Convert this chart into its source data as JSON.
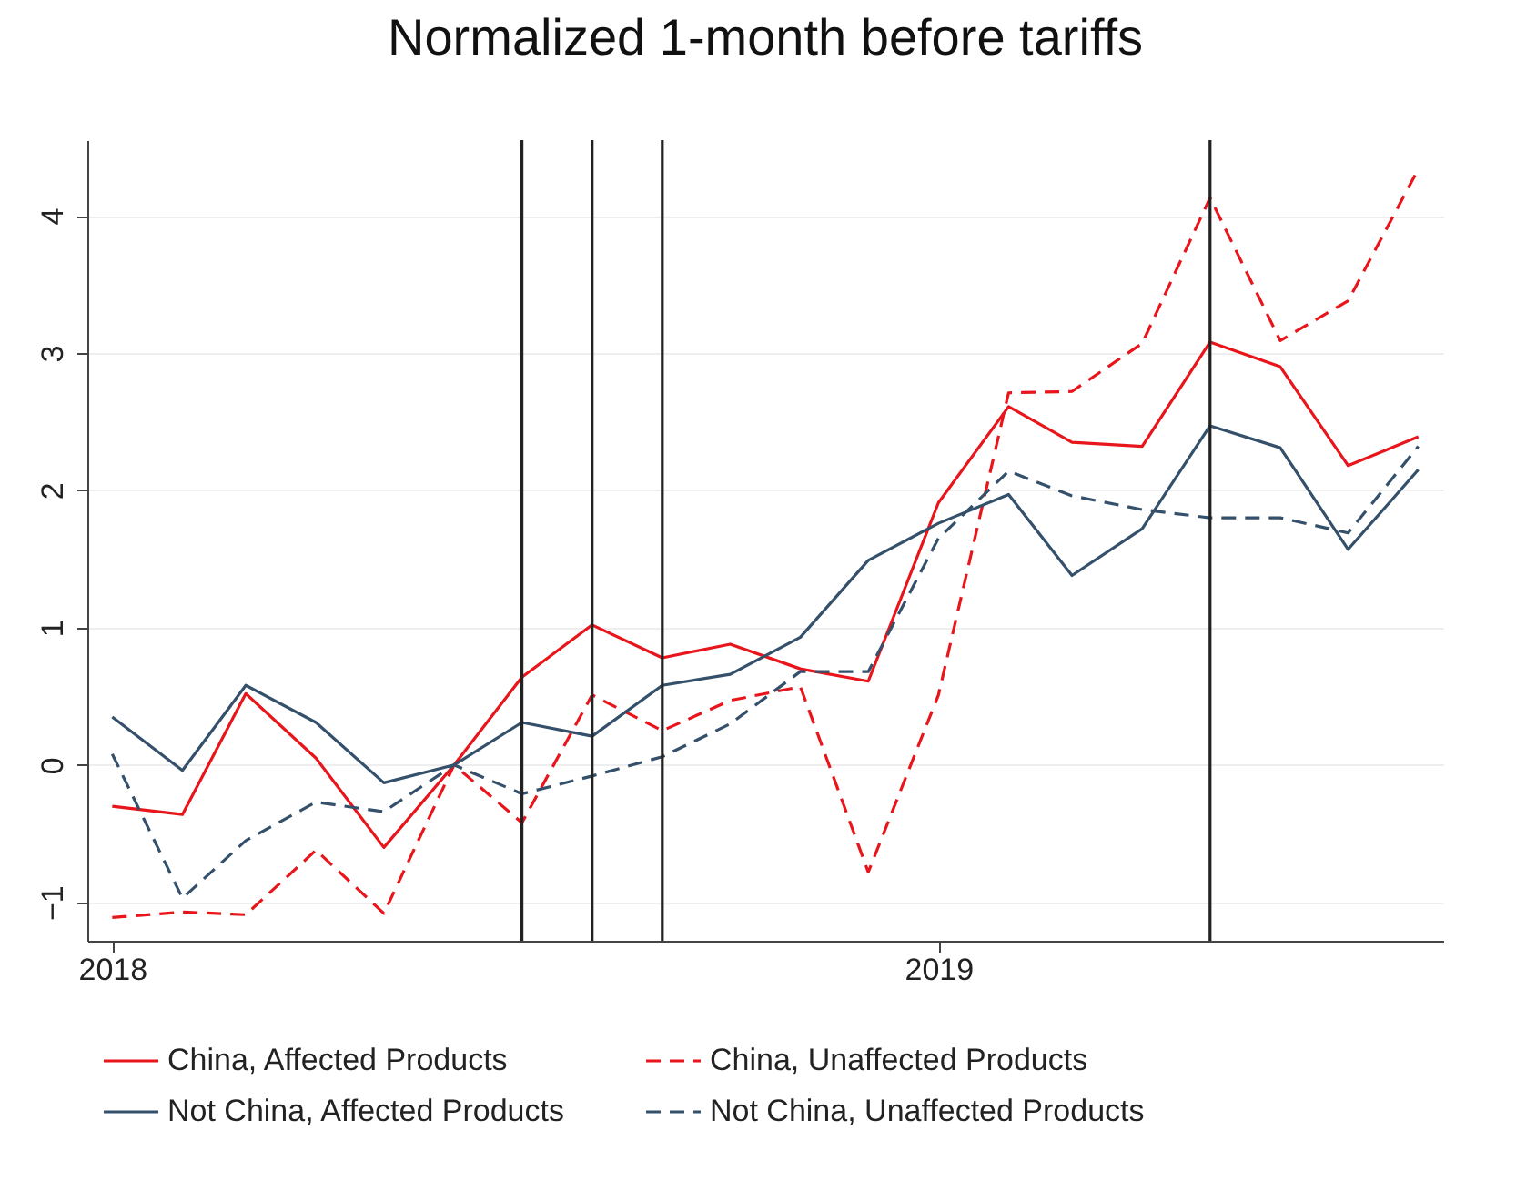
{
  "chart_data": {
    "type": "line",
    "title": "Normalized 1-month before tariffs",
    "x": [
      "2018-01",
      "2018-02",
      "2018-03",
      "2018-04",
      "2018-05",
      "2018-06",
      "2018-07",
      "2018-08",
      "2018-09",
      "2018-10",
      "2018-11",
      "2018-12",
      "2019-01",
      "2019-02",
      "2019-03",
      "2019-04",
      "2019-05",
      "2019-06",
      "2019-07",
      "2019-08"
    ],
    "series": [
      {
        "name": "China, Affected Products",
        "color": "#e8151b",
        "line_style": "solid",
        "values": [
          -0.3,
          -0.36,
          0.52,
          0.05,
          -0.6,
          0,
          0.64,
          1.02,
          0.78,
          0.88,
          0.7,
          0.61,
          1.91,
          2.61,
          2.35,
          2.32,
          3.08,
          2.9,
          2.18,
          2.39
        ]
      },
      {
        "name": "China, Unaffected Products",
        "color": "#e8151b",
        "line_style": "dashed",
        "values": [
          -1.11,
          -1.07,
          -1.09,
          -0.62,
          -1.08,
          0,
          -0.42,
          0.51,
          0.25,
          0.47,
          0.57,
          -0.78,
          0.51,
          2.71,
          2.72,
          3.07,
          4.13,
          3.09,
          3.38,
          4.34
        ]
      },
      {
        "name": "Not China, Affected Products",
        "color": "#34506b",
        "line_style": "solid",
        "values": [
          0.35,
          -0.04,
          0.58,
          0.31,
          -0.13,
          0,
          0.31,
          0.21,
          0.58,
          0.66,
          0.93,
          1.49,
          1.76,
          1.97,
          1.38,
          1.72,
          2.47,
          2.31,
          1.57,
          2.15
        ]
      },
      {
        "name": "Not China, Unaffected Products",
        "color": "#34506b",
        "line_style": "dashed",
        "values": [
          0.08,
          -0.97,
          -0.55,
          -0.27,
          -0.34,
          0,
          -0.21,
          -0.08,
          0.06,
          0.3,
          0.68,
          0.68,
          1.65,
          2.14,
          1.96,
          1.86,
          1.8,
          1.8,
          1.69,
          2.32
        ]
      }
    ],
    "xlim": [
      "2017-12-21",
      "2019-08-12"
    ],
    "xticks": [
      {
        "value": "2018-01",
        "label": "2018"
      },
      {
        "value": "2019-01",
        "label": "2019"
      }
    ],
    "ylim": [
      -1.28,
      4.55
    ],
    "yticks": [
      -1,
      0,
      1,
      2,
      3,
      4
    ],
    "ref_lines": [
      {
        "axis": "x",
        "value": "2018-07",
        "color": "#222222"
      },
      {
        "axis": "x",
        "value": "2018-08",
        "color": "#222222"
      },
      {
        "axis": "x",
        "value": "2018-09",
        "color": "#222222"
      },
      {
        "axis": "x",
        "value": "2019-05",
        "color": "#222222"
      }
    ],
    "grid": "y",
    "legend": "bottom"
  }
}
